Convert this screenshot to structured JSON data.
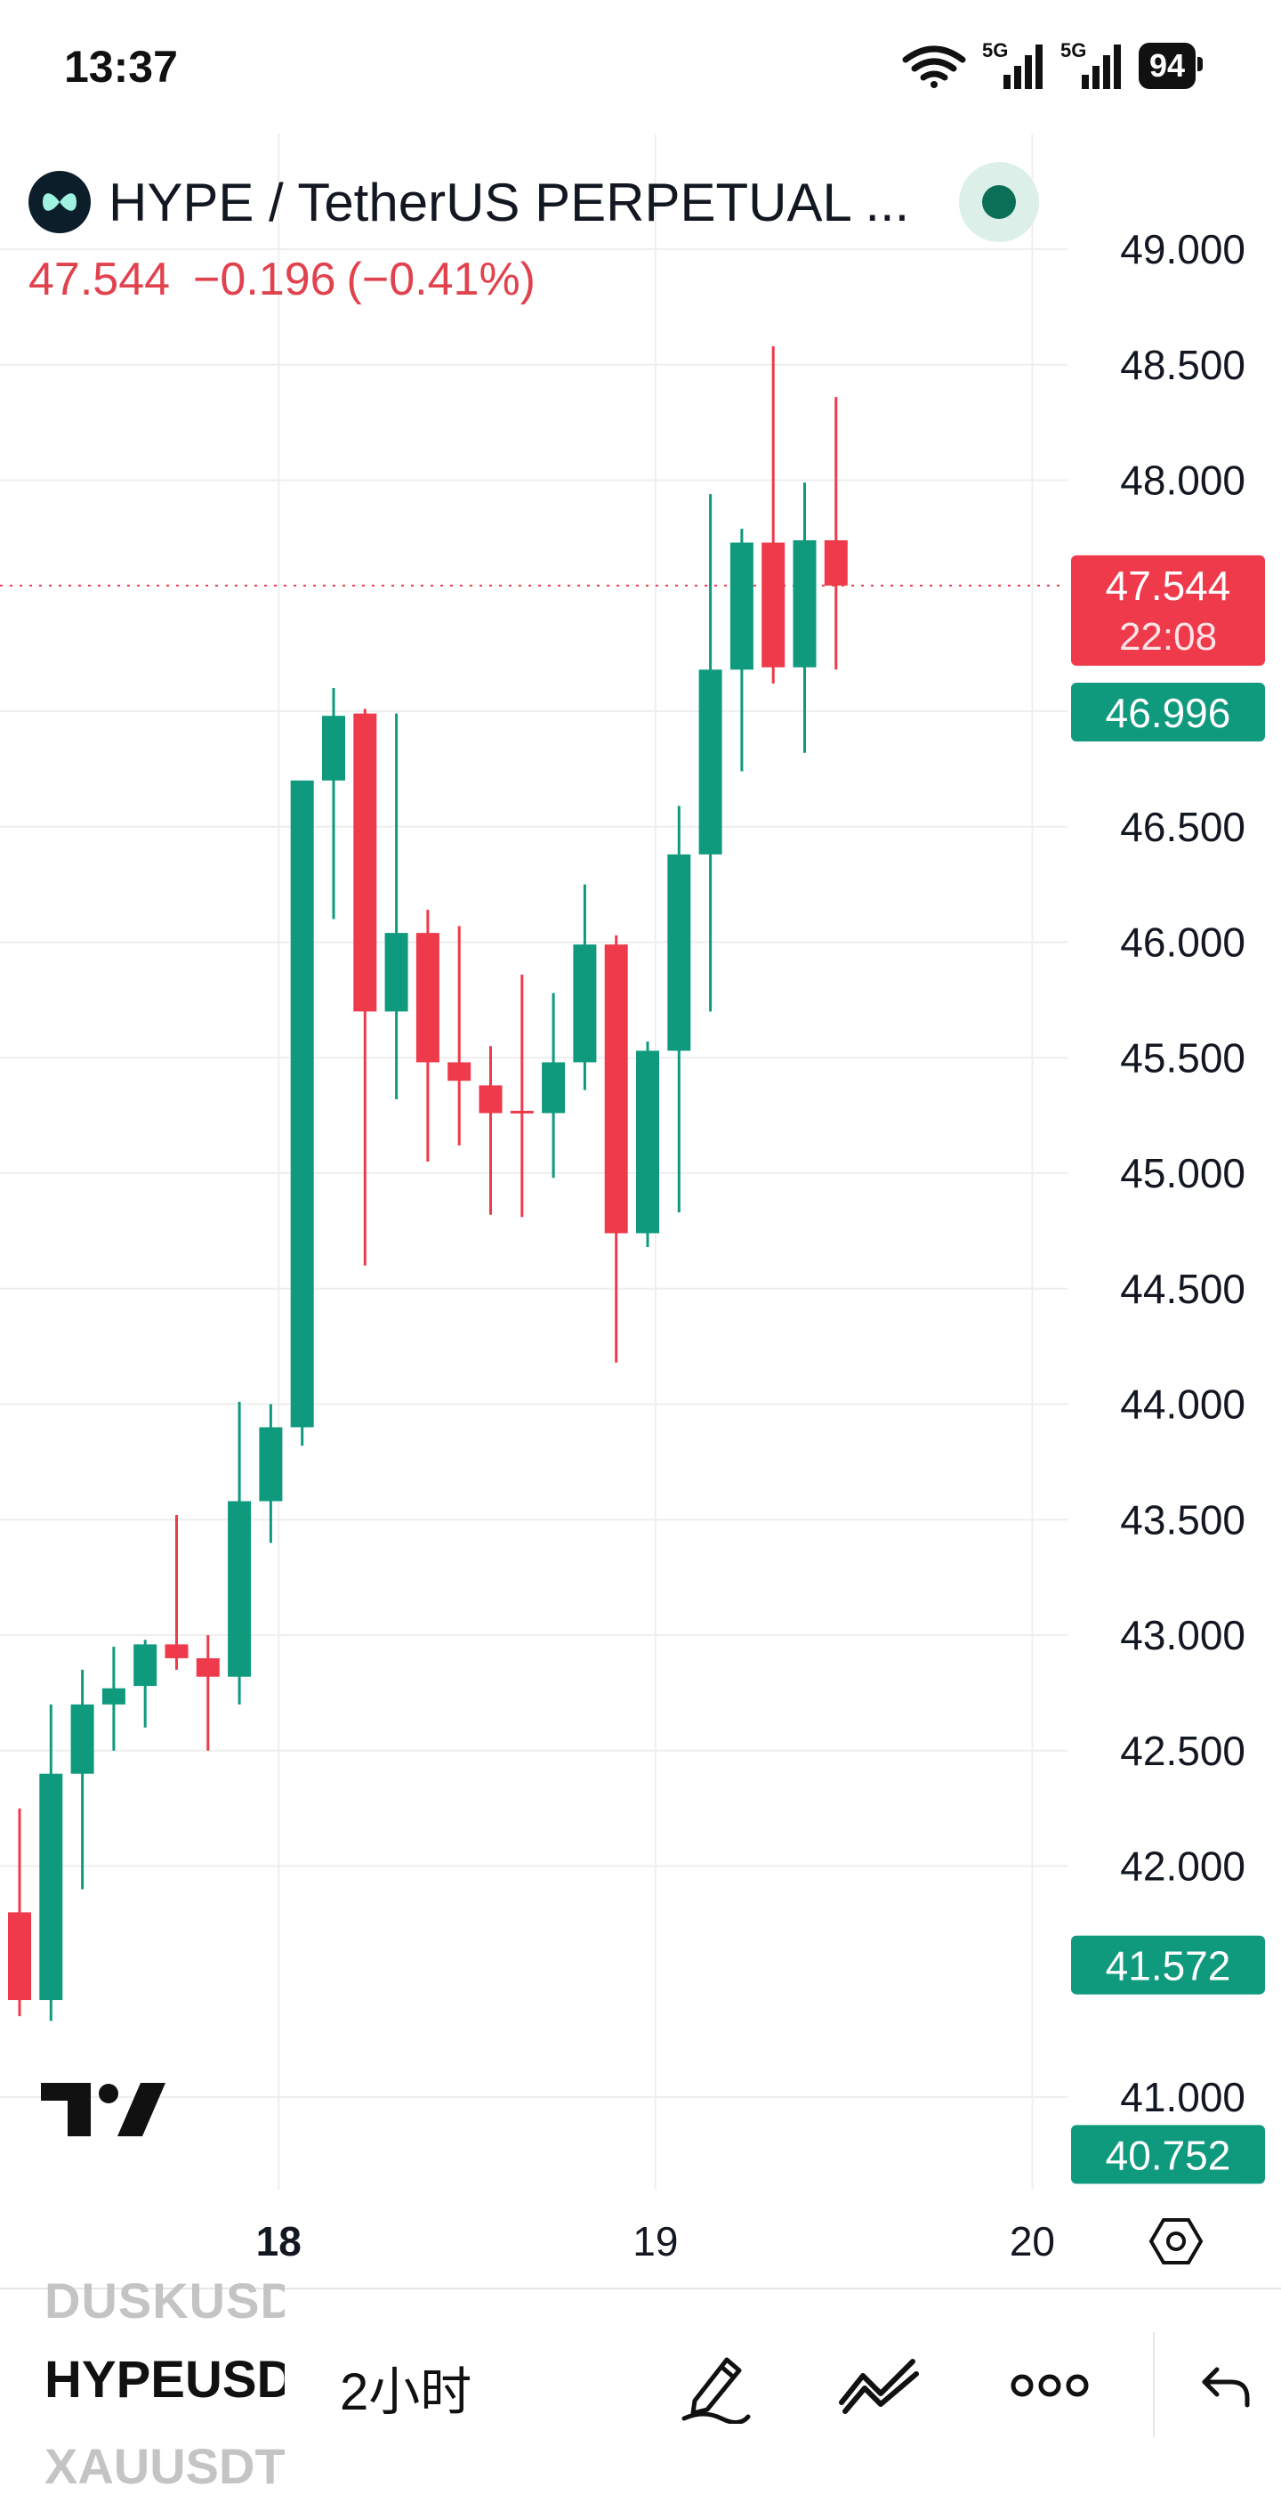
{
  "status_bar": {
    "time": "13:37",
    "net1": "5G",
    "net2": "5G",
    "battery": "94",
    "icons": [
      "wifi-icon",
      "signal-icon",
      "signal-icon",
      "battery-icon"
    ]
  },
  "header": {
    "symbol_title": "HYPE / TetherUS PERPETUAL ...",
    "last_price": "47.544",
    "change": "−0.196",
    "change_pct": "(−0.41%)",
    "live_indicator_color": "#0b6e57"
  },
  "colors": {
    "up": "#0f9a7e",
    "down": "#ef3a4b",
    "grid": "#eeeeee",
    "axis_text": "#131722"
  },
  "price_axis": {
    "labels": [
      "49.000",
      "48.500",
      "48.000",
      "47.000",
      "46.500",
      "46.000",
      "45.500",
      "45.000",
      "44.500",
      "44.000",
      "43.500",
      "43.000",
      "42.500",
      "42.000",
      "41.000"
    ],
    "values": [
      49.0,
      48.5,
      48.0,
      47.0,
      46.5,
      46.0,
      45.5,
      45.0,
      44.5,
      44.0,
      43.5,
      43.0,
      42.5,
      42.0,
      41.0
    ]
  },
  "price_tags": [
    {
      "label": "47.544",
      "sub": "22:08",
      "value": 47.544,
      "color": "#ef3a4b"
    },
    {
      "label": "46.996",
      "value": 46.996,
      "color": "#0f9a7e"
    },
    {
      "label": "41.572",
      "value": 41.572,
      "color": "#0f9a7e"
    },
    {
      "label": "40.752",
      "value": 40.752,
      "color": "#0f9a7e"
    }
  ],
  "time_axis": {
    "labels": [
      {
        "text": "18",
        "bold": true,
        "index": 8.25
      },
      {
        "text": "19",
        "bold": false,
        "index": 20.25
      },
      {
        "text": "20",
        "bold": false,
        "index": 32.25
      }
    ]
  },
  "chart_data": {
    "type": "candlestick",
    "ylim": [
      40.55,
      49.35
    ],
    "last_price": 47.544,
    "candles": [
      {
        "o": 41.8,
        "h": 42.25,
        "l": 41.35,
        "c": 41.42
      },
      {
        "o": 41.42,
        "h": 42.7,
        "l": 41.33,
        "c": 42.4
      },
      {
        "o": 42.4,
        "h": 42.85,
        "l": 41.9,
        "c": 42.7
      },
      {
        "o": 42.7,
        "h": 42.95,
        "l": 42.5,
        "c": 42.77
      },
      {
        "o": 42.78,
        "h": 42.98,
        "l": 42.6,
        "c": 42.96
      },
      {
        "o": 42.96,
        "h": 43.52,
        "l": 42.85,
        "c": 42.9
      },
      {
        "o": 42.9,
        "h": 43.0,
        "l": 42.5,
        "c": 42.82
      },
      {
        "o": 42.82,
        "h": 44.01,
        "l": 42.7,
        "c": 43.58
      },
      {
        "o": 43.58,
        "h": 44.0,
        "l": 43.4,
        "c": 43.9
      },
      {
        "o": 43.9,
        "h": 46.62,
        "l": 43.82,
        "c": 46.7
      },
      {
        "o": 46.7,
        "h": 47.1,
        "l": 46.1,
        "c": 46.98
      },
      {
        "o": 46.99,
        "h": 47.01,
        "l": 44.6,
        "c": 45.7
      },
      {
        "o": 45.7,
        "h": 46.99,
        "l": 45.32,
        "c": 46.04
      },
      {
        "o": 46.04,
        "h": 46.14,
        "l": 45.05,
        "c": 45.48
      },
      {
        "o": 45.48,
        "h": 46.07,
        "l": 45.12,
        "c": 45.4
      },
      {
        "o": 45.38,
        "h": 45.55,
        "l": 44.82,
        "c": 45.26
      },
      {
        "o": 45.27,
        "h": 45.86,
        "l": 44.81,
        "c": 45.26
      },
      {
        "o": 45.26,
        "h": 45.78,
        "l": 44.98,
        "c": 45.48
      },
      {
        "o": 45.48,
        "h": 46.25,
        "l": 45.36,
        "c": 45.99
      },
      {
        "o": 45.99,
        "h": 46.03,
        "l": 44.18,
        "c": 44.74
      },
      {
        "o": 44.74,
        "h": 45.57,
        "l": 44.68,
        "c": 45.53
      },
      {
        "o": 45.53,
        "h": 46.59,
        "l": 44.83,
        "c": 46.38
      },
      {
        "o": 46.38,
        "h": 47.94,
        "l": 45.7,
        "c": 47.18
      },
      {
        "o": 47.18,
        "h": 47.79,
        "l": 46.74,
        "c": 47.73
      },
      {
        "o": 47.73,
        "h": 48.58,
        "l": 47.12,
        "c": 47.19
      },
      {
        "o": 47.19,
        "h": 47.99,
        "l": 46.82,
        "c": 47.74
      },
      {
        "o": 47.74,
        "h": 48.36,
        "l": 47.18,
        "c": 47.544
      }
    ]
  },
  "bottom_bar": {
    "ghost_top": "DUSKUSDT",
    "current_symbol": "HYPEUSDT",
    "ghost_bottom": "XAUUSDT",
    "interval": "2小时"
  }
}
